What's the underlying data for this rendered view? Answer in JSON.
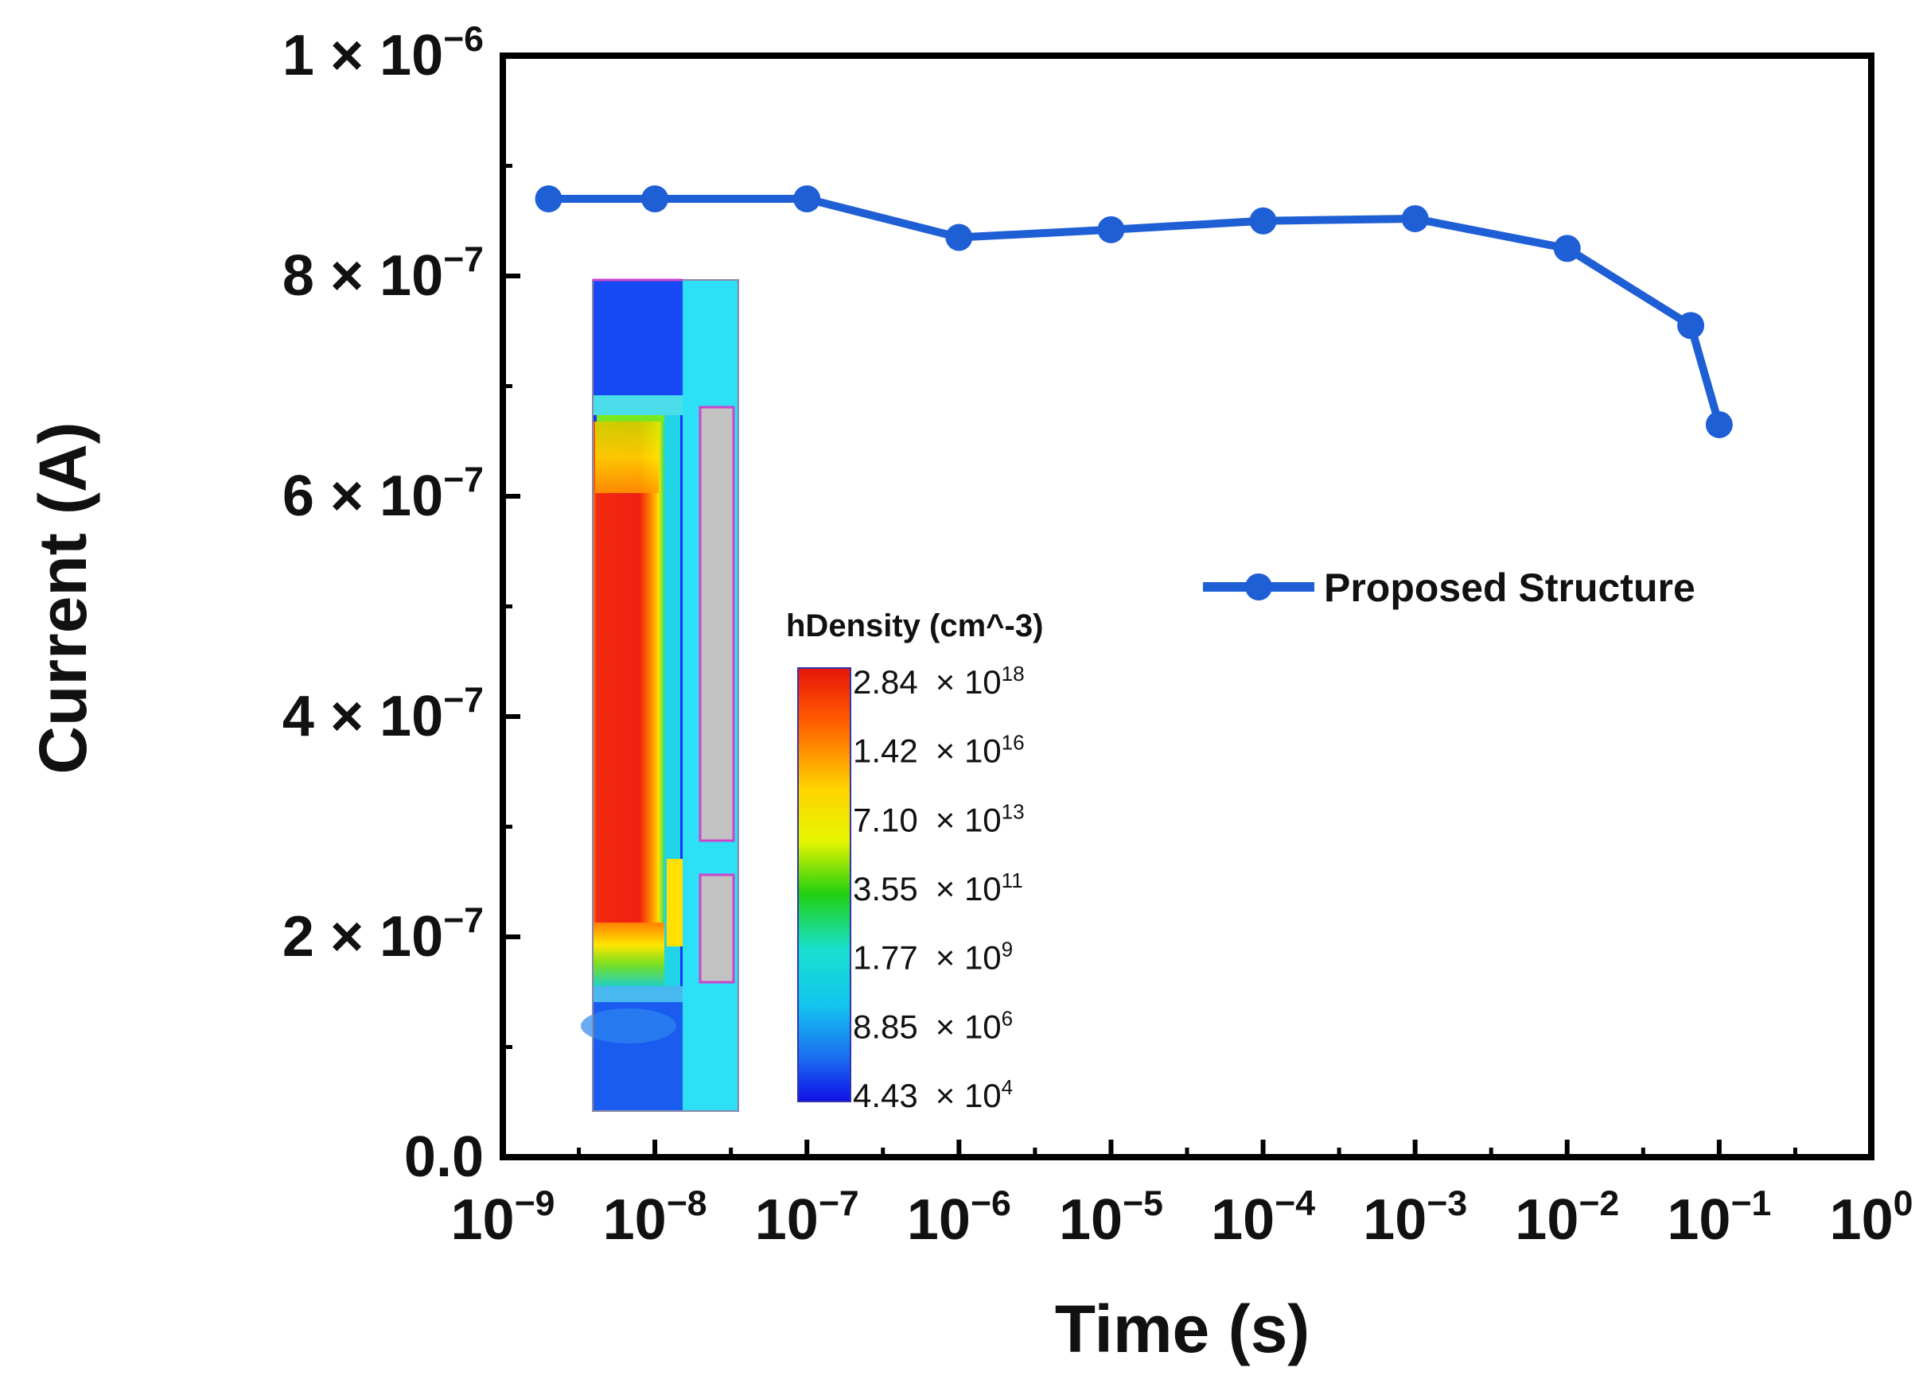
{
  "chart_data": {
    "type": "line",
    "xlabel": "Time (s)",
    "ylabel": "Current (A)",
    "xscale": "log",
    "xlim": [
      1e-09,
      1
    ],
    "ylim": [
      0,
      1e-06
    ],
    "x_ticks": [
      {
        "value": 1e-09,
        "base": "10",
        "exp": "−9"
      },
      {
        "value": 1e-08,
        "base": "10",
        "exp": "−8"
      },
      {
        "value": 1e-07,
        "base": "10",
        "exp": "−7"
      },
      {
        "value": 1e-06,
        "base": "10",
        "exp": "−6"
      },
      {
        "value": 1e-05,
        "base": "10",
        "exp": "−5"
      },
      {
        "value": 0.0001,
        "base": "10",
        "exp": "−4"
      },
      {
        "value": 0.001,
        "base": "10",
        "exp": "−3"
      },
      {
        "value": 0.01,
        "base": "10",
        "exp": "−2"
      },
      {
        "value": 0.1,
        "base": "10",
        "exp": "−1"
      },
      {
        "value": 1,
        "base": "10",
        "exp": "0"
      }
    ],
    "y_ticks": [
      {
        "value": 0,
        "mant": "0.0",
        "exp": ""
      },
      {
        "value": 2e-07,
        "mant": "2 × 10",
        "exp": "−7"
      },
      {
        "value": 4e-07,
        "mant": "4 × 10",
        "exp": "−7"
      },
      {
        "value": 6e-07,
        "mant": "6 × 10",
        "exp": "−7"
      },
      {
        "value": 8e-07,
        "mant": "8 × 10",
        "exp": "−7"
      },
      {
        "value": 1e-06,
        "mant": "1 × 10",
        "exp": "−6"
      }
    ],
    "series": [
      {
        "name": "Proposed Structure",
        "color": "#1f5fd6",
        "x": [
          2e-09,
          1e-08,
          1e-07,
          1e-06,
          1e-05,
          0.0001,
          0.001,
          0.01,
          0.065,
          0.1
        ],
        "y": [
          8.7e-07,
          8.7e-07,
          8.7e-07,
          8.35e-07,
          8.42e-07,
          8.5e-07,
          8.52e-07,
          8.25e-07,
          7.55e-07,
          6.65e-07
        ]
      }
    ],
    "legend_position": "right-middle",
    "inset": {
      "title": "hDensity (cm^-3)",
      "colorbar_labels": [
        {
          "mant": "2.84",
          "exp": "18"
        },
        {
          "mant": "1.42",
          "exp": "16"
        },
        {
          "mant": "7.10",
          "exp": "13"
        },
        {
          "mant": "3.55",
          "exp": "11"
        },
        {
          "mant": "1.77",
          "exp": "9"
        },
        {
          "mant": "8.85",
          "exp": "6"
        },
        {
          "mant": "4.43",
          "exp": "4"
        }
      ]
    }
  }
}
